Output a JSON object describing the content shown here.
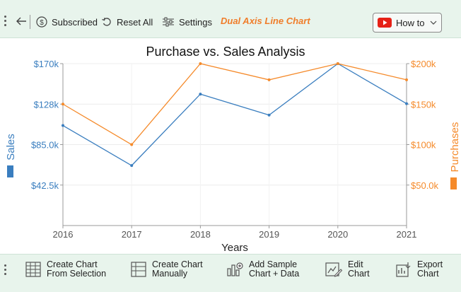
{
  "toolbar": {
    "back_icon": "back-arrow-icon",
    "subscribed_label": "Subscribed",
    "reset_label": "Reset All",
    "settings_label": "Settings",
    "chart_type_label": "Dual Axis Line Chart",
    "howto_label": "How to"
  },
  "bottom_toolbar": {
    "create_from_selection": [
      "Create Chart",
      "From Selection"
    ],
    "create_manually": [
      "Create Chart",
      "Manually"
    ],
    "add_sample": [
      "Add Sample",
      "Chart + Data"
    ],
    "edit_chart": [
      "Edit",
      "Chart"
    ],
    "export_chart": [
      "Export",
      "Chart"
    ]
  },
  "colors": {
    "sales": "#3a7ebf",
    "purchases": "#f58a2a",
    "toolbar_bg": "#e8f4ec",
    "accent": "#f07d2a"
  },
  "chart_data": {
    "type": "line",
    "title": "Purchase vs. Sales Analysis",
    "xlabel": "Years",
    "x": [
      "2016",
      "2017",
      "2018",
      "2019",
      "2020",
      "2021"
    ],
    "series": [
      {
        "name": "Sales",
        "axis": "left",
        "values": [
          105000,
          63000,
          138000,
          116000,
          170000,
          128000
        ]
      },
      {
        "name": "Purchases",
        "axis": "right",
        "values": [
          150000,
          100000,
          200000,
          180000,
          200000,
          180000
        ]
      }
    ],
    "y_left": {
      "label": "Sales",
      "ylim": [
        0,
        170000
      ],
      "ticks": [
        42500,
        85000,
        127500,
        170000
      ],
      "tick_labels": [
        "$42.5k",
        "$85.0k",
        "$128k",
        "$170k"
      ]
    },
    "y_right": {
      "label": "Purchases",
      "ylim": [
        0,
        200000
      ],
      "ticks": [
        50000,
        100000,
        150000,
        200000
      ],
      "tick_labels": [
        "$50.0k",
        "$100k",
        "$150k",
        "$200k"
      ]
    },
    "grid": true
  }
}
